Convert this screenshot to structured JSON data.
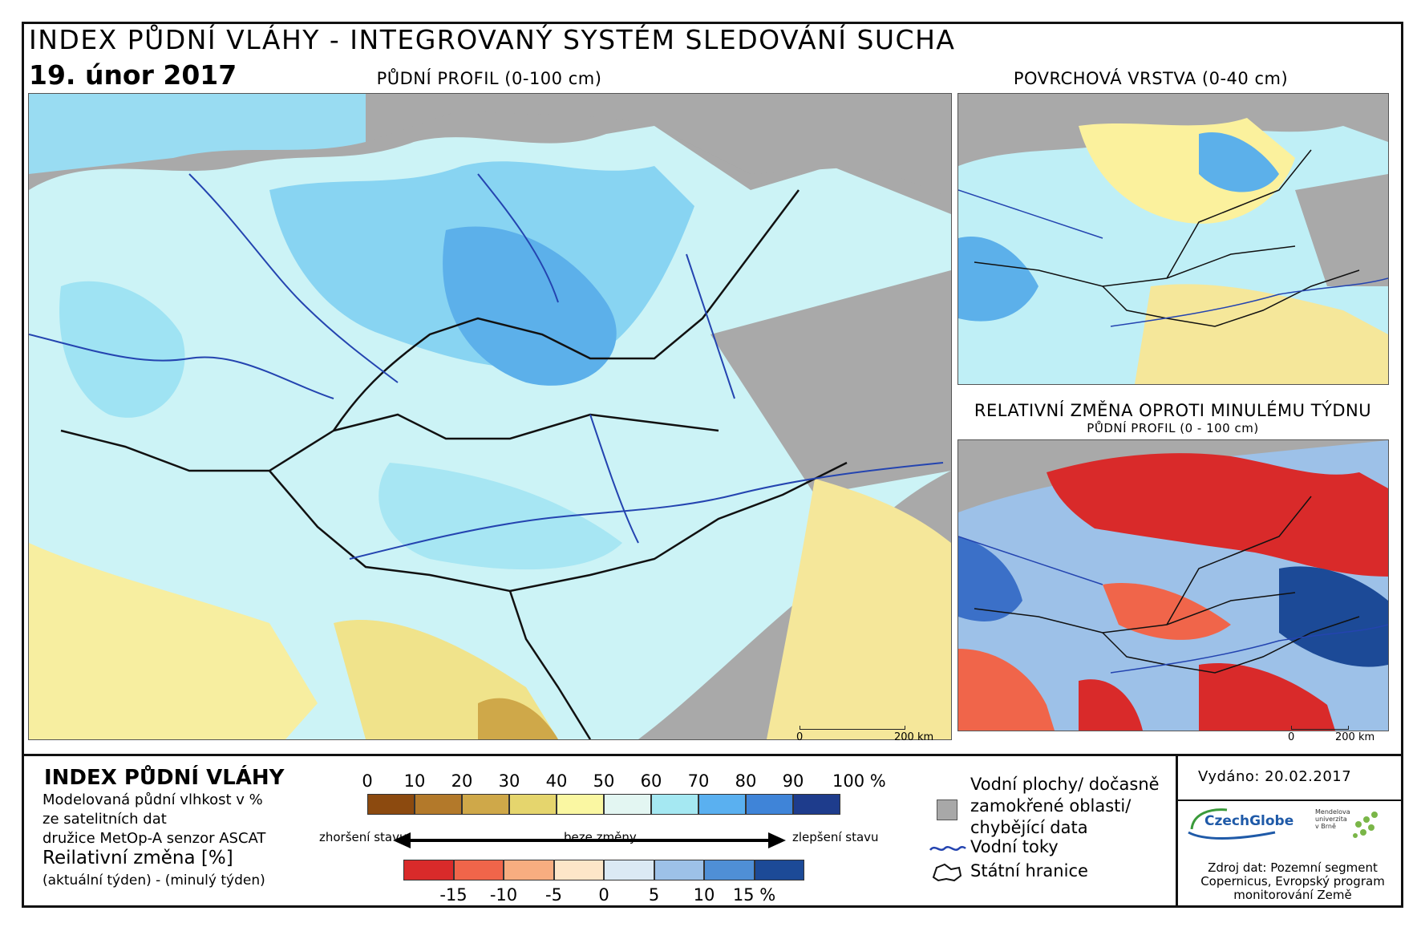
{
  "header": {
    "title": "INDEX PŮDNÍ VLÁHY - INTEGROVANÝ SYSTÉM SLEDOVÁNÍ SUCHA",
    "date": "19. únor 2017"
  },
  "maps": {
    "main_title": "PŮDNÍ PROFIL (0-100 cm)",
    "surface_title": "POVRCHOVÁ VRSTVA (0-40 cm)",
    "change_title": "RELATIVNÍ ZMĚNA OPROTI MINULÉMU TÝDNU",
    "change_subtitle": "PŮDNÍ PROFIL (0 - 100 cm)",
    "scale_zero": "0",
    "scale_end": "200 km"
  },
  "legend": {
    "title": "INDEX PŮDNÍ VLÁHY",
    "desc_line1": "Modelovaná půdní vlhkost v %",
    "desc_line2": "ze satelitních dat",
    "desc_line3": "družice MetOp-A senzor ASCAT",
    "change_title": "Reilativní změna [%]",
    "change_desc": "(aktuální týden) - (minulý týden)",
    "worse": "zhoršení stavu",
    "nochange": "beze změny",
    "better": "zlepšení stavu",
    "index_ticks": [
      "0",
      "10",
      "20",
      "30",
      "40",
      "50",
      "60",
      "70",
      "80",
      "90",
      "100 %"
    ],
    "index_colors": [
      "#8c4a0f",
      "#b3792a",
      "#cfa849",
      "#e5d56d",
      "#faf7a2",
      "#e3f6f2",
      "#a5e8f2",
      "#5ab0f0",
      "#3f84d8",
      "#1e3c8c"
    ],
    "change_ticks": [
      "-15",
      "-10",
      "-5",
      "0",
      "5",
      "10",
      "15 %"
    ],
    "change_colors": [
      "#d92a2a",
      "#f0654a",
      "#f8ad80",
      "#fde6c8",
      "#dbe9f4",
      "#9dc1e8",
      "#4f8fd6",
      "#1c4a97"
    ],
    "water_areas": "Vodní plochy/ dočasně zamokřené oblasti/ chybějící data",
    "rivers": "Vodní toky",
    "borders": "Státní hranice"
  },
  "footer": {
    "issued": "Vydáno: 20.02.2017",
    "logo1": "CzechGlobe",
    "logo2": "Mendelova univerzita v Brně",
    "source": "Zdroj dat: Pozemní segment Copernicus, Evropský program monitorování Země"
  },
  "colors": {
    "missing": "#a8a8a8",
    "river": "#2444b0",
    "border": "#111111"
  }
}
